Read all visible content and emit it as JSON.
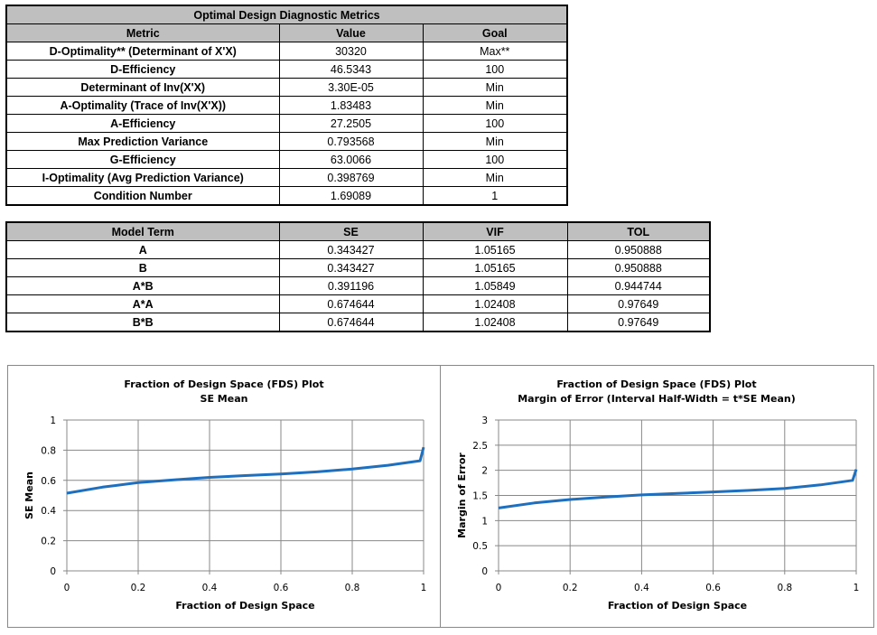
{
  "metrics_table": {
    "title": "Optimal Design Diagnostic Metrics",
    "headers": [
      "Metric",
      "Value",
      "Goal"
    ],
    "rows": [
      [
        "D-Optimality** (Determinant of X'X)",
        "30320",
        "Max**"
      ],
      [
        "D-Efficiency",
        "46.5343",
        "100"
      ],
      [
        "Determinant of Inv(X'X)",
        "3.30E-05",
        "Min"
      ],
      [
        "A-Optimality (Trace of Inv(X'X))",
        "1.83483",
        "Min"
      ],
      [
        "A-Efficiency",
        "27.2505",
        "100"
      ],
      [
        "Max Prediction Variance",
        "0.793568",
        "Min"
      ],
      [
        "G-Efficiency",
        "63.0066",
        "100"
      ],
      [
        "I-Optimality (Avg Prediction Variance)",
        "0.398769",
        "Min"
      ],
      [
        "Condition Number",
        "1.69089",
        "1"
      ]
    ]
  },
  "terms_table": {
    "headers": [
      "Model Term",
      "SE",
      "VIF",
      "TOL"
    ],
    "rows": [
      [
        "A",
        "0.343427",
        "1.05165",
        "0.950888"
      ],
      [
        "B",
        "0.343427",
        "1.05165",
        "0.950888"
      ],
      [
        "A*B",
        "0.391196",
        "1.05849",
        "0.944744"
      ],
      [
        "A*A",
        "0.674644",
        "1.02408",
        "0.97649"
      ],
      [
        "B*B",
        "0.674644",
        "1.02408",
        "0.97649"
      ]
    ]
  },
  "chart_data": [
    {
      "type": "line",
      "title": "Fraction of Design Space (FDS) Plot",
      "subtitle": "SE Mean",
      "xlabel": "Fraction of Design Space",
      "ylabel": "SE Mean",
      "xlim": [
        0,
        1
      ],
      "ylim": [
        0,
        1
      ],
      "xticks": [
        "0",
        "0.2",
        "0.4",
        "0.6",
        "0.8",
        "1"
      ],
      "yticks": [
        "0",
        "0.2",
        "0.4",
        "0.6",
        "0.8",
        "1"
      ],
      "grid": true,
      "color": "#1f6fbf",
      "x": [
        0,
        0.1,
        0.2,
        0.3,
        0.4,
        0.5,
        0.6,
        0.7,
        0.8,
        0.9,
        0.99,
        1
      ],
      "y": [
        0.515,
        0.555,
        0.585,
        0.603,
        0.62,
        0.632,
        0.642,
        0.656,
        0.675,
        0.7,
        0.73,
        0.82
      ]
    },
    {
      "type": "line",
      "title": "Fraction of Design Space (FDS) Plot",
      "subtitle": "Margin of Error (Interval Half-Width = t*SE Mean)",
      "xlabel": "Fraction of Design Space",
      "ylabel": "Margin of Error",
      "xlim": [
        0,
        1
      ],
      "ylim": [
        0,
        3
      ],
      "xticks": [
        "0",
        "0.2",
        "0.4",
        "0.6",
        "0.8",
        "1"
      ],
      "yticks": [
        "0",
        "0.5",
        "1",
        "1.5",
        "2",
        "2.5",
        "3"
      ],
      "grid": true,
      "color": "#1f6fbf",
      "x": [
        0,
        0.1,
        0.2,
        0.3,
        0.4,
        0.5,
        0.6,
        0.7,
        0.8,
        0.9,
        0.99,
        1
      ],
      "y": [
        1.25,
        1.35,
        1.42,
        1.47,
        1.51,
        1.54,
        1.57,
        1.6,
        1.64,
        1.71,
        1.8,
        2.02
      ]
    }
  ]
}
